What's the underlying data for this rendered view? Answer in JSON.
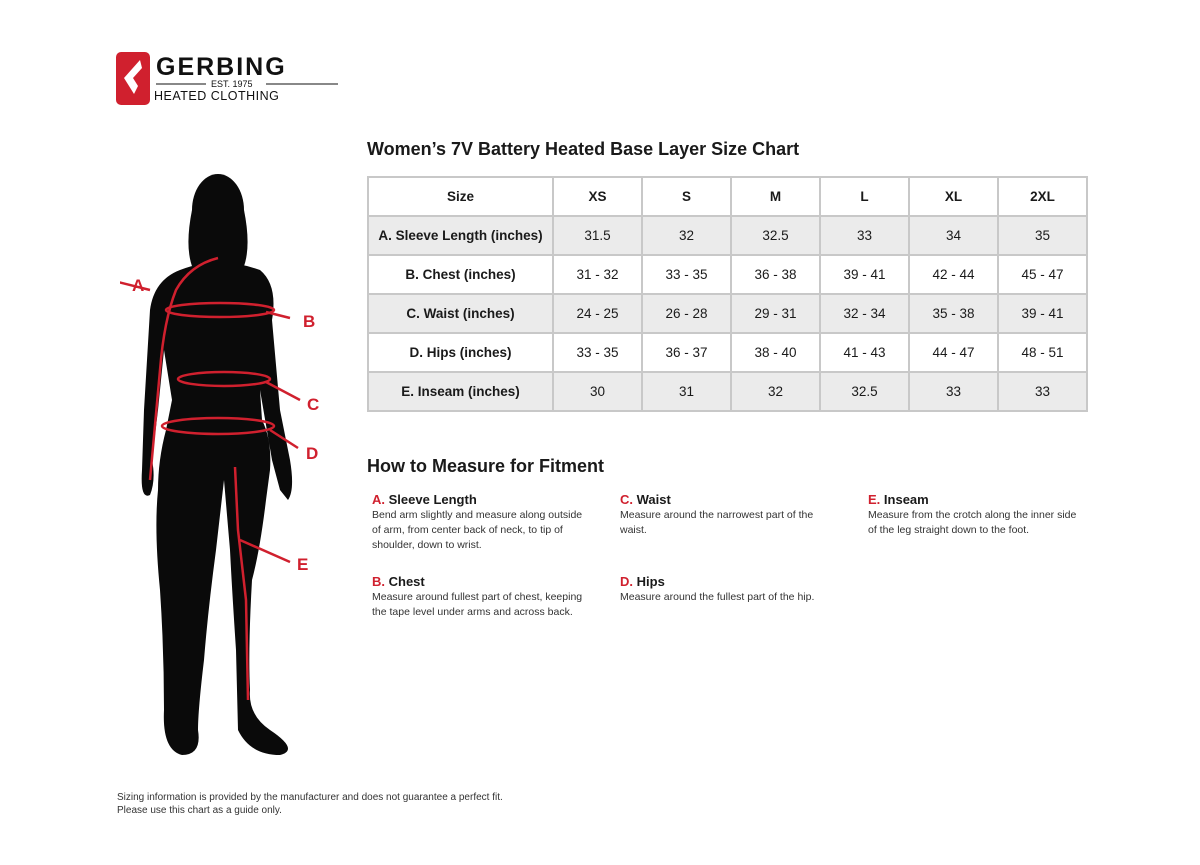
{
  "logo": {
    "brand": "GERBING",
    "est": "EST. 1975",
    "tagline": "HEATED CLOTHING",
    "color": "#d0202e"
  },
  "title": "Women’s 7V Battery Heated Base Layer Size Chart",
  "table": {
    "headers": [
      "Size",
      "XS",
      "S",
      "M",
      "L",
      "XL",
      "2XL"
    ],
    "rows": [
      {
        "label": "A. Sleeve Length (inches)",
        "values": [
          "31.5",
          "32",
          "32.5",
          "33",
          "34",
          "35"
        ]
      },
      {
        "label": "B. Chest (inches)",
        "values": [
          "31 - 32",
          "33 - 35",
          "36 - 38",
          "39 - 41",
          "42 - 44",
          "45 - 47"
        ]
      },
      {
        "label": "C. Waist (inches)",
        "values": [
          "24 - 25",
          "26 - 28",
          "29 - 31",
          "32 - 34",
          "35 - 38",
          "39 - 41"
        ]
      },
      {
        "label": "D. Hips (inches)",
        "values": [
          "33 - 35",
          "36 - 37",
          "38 - 40",
          "41 - 43",
          "44 - 47",
          "48 - 51"
        ]
      },
      {
        "label": "E. Inseam (inches)",
        "values": [
          "30",
          "31",
          "32",
          "32.5",
          "33",
          "33"
        ]
      }
    ]
  },
  "how_to": {
    "title": "How to Measure for Fitment",
    "items": [
      {
        "letter": "A.",
        "name": "Sleeve Length",
        "text": "Bend arm slightly and measure along outside of arm, from center back of neck, to tip of shoulder, down to wrist."
      },
      {
        "letter": "B.",
        "name": "Chest",
        "text": "Measure around fullest part of chest, keeping the tape level under arms and across back."
      },
      {
        "letter": "C.",
        "name": "Waist",
        "text": "Measure around the narrowest part of the waist."
      },
      {
        "letter": "D.",
        "name": "Hips",
        "text": "Measure around the fullest part of the hip."
      },
      {
        "letter": "E.",
        "name": "Inseam",
        "text": "Measure from the crotch along the inner side of the leg straight down to the foot."
      }
    ]
  },
  "figure": {
    "labels": [
      "A",
      "B",
      "C",
      "D",
      "E"
    ]
  },
  "footer": {
    "line1": "Sizing information is provided by the manufacturer and does not guarantee a perfect fit.",
    "line2": "Please use this chart as a guide only."
  }
}
